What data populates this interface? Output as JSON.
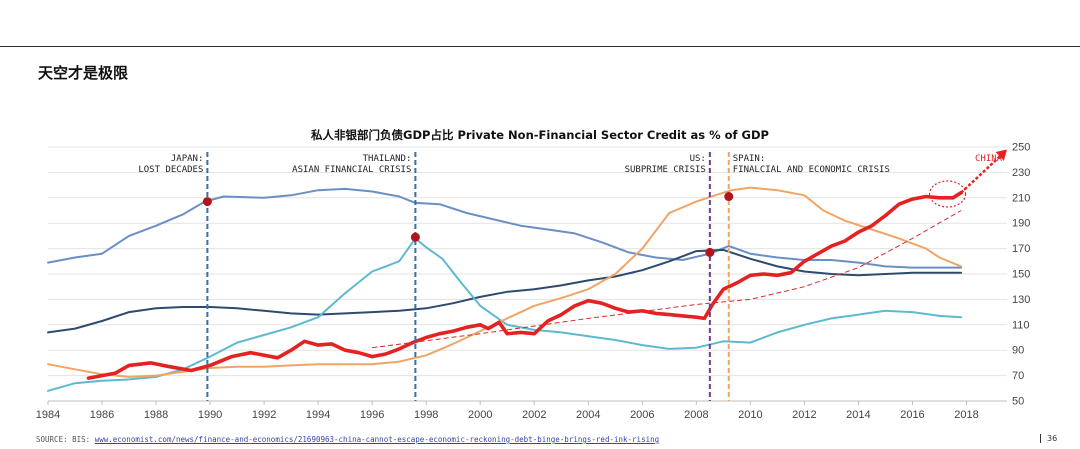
{
  "slide": {
    "heading": "天空才是极限",
    "source_prefix": "SOURCE: BIS: ",
    "source_url": "www.economist.com/news/finance-and-economics/21690963-china-cannot-escape-economic-reckoning-debt-binge-brings-red-ink-rising",
    "page_number": "36"
  },
  "chart_data": {
    "type": "line",
    "title": "私人非银部门负债GDP占比 Private Non-Financial Sector Credit as % of GDP",
    "xlim": [
      1984,
      2019.5
    ],
    "ylim": [
      50,
      250
    ],
    "x_ticks": [
      "1984",
      "1986",
      "1988",
      "1990",
      "1992",
      "1994",
      "1996",
      "1998",
      "2000",
      "2002",
      "2004",
      "2006",
      "2008",
      "2010",
      "2012",
      "2014",
      "2016",
      "2018"
    ],
    "y_ticks": [
      "50",
      "70",
      "90",
      "110",
      "130",
      "150",
      "170",
      "190",
      "210",
      "230",
      "250"
    ],
    "y_axis_side": "right",
    "grid": "horizontal",
    "legend": "none",
    "series": [
      {
        "color": "#6a8fc4",
        "points": [
          [
            1984,
            159
          ],
          [
            1985,
            163
          ],
          [
            1986,
            166
          ],
          [
            1987,
            180
          ],
          [
            1988,
            188
          ],
          [
            1989,
            197
          ],
          [
            1989.8,
            207
          ],
          [
            1990.5,
            211
          ],
          [
            1992,
            210
          ],
          [
            1993,
            212
          ],
          [
            1994,
            216
          ],
          [
            1995,
            217
          ],
          [
            1996,
            215
          ],
          [
            1997,
            211
          ],
          [
            1997.6,
            206
          ],
          [
            1998.5,
            205
          ],
          [
            1999.5,
            198
          ],
          [
            2000.5,
            193
          ],
          [
            2001.5,
            188
          ],
          [
            2002.5,
            185
          ],
          [
            2003.5,
            182
          ],
          [
            2004.5,
            175
          ],
          [
            2005.5,
            167
          ],
          [
            2006.5,
            163
          ],
          [
            2007.5,
            161
          ],
          [
            2008.5,
            166
          ],
          [
            2009.2,
            172
          ],
          [
            2010,
            166
          ],
          [
            2011,
            163
          ],
          [
            2012,
            161
          ],
          [
            2013,
            161
          ],
          [
            2014,
            159
          ],
          [
            2015,
            156
          ],
          [
            2016,
            155
          ],
          [
            2017,
            155
          ],
          [
            2017.8,
            155
          ]
        ]
      },
      {
        "color": "#2e4a6e",
        "points": [
          [
            1984,
            104
          ],
          [
            1985,
            107
          ],
          [
            1986,
            113
          ],
          [
            1987,
            120
          ],
          [
            1988,
            123
          ],
          [
            1989,
            124
          ],
          [
            1990,
            124
          ],
          [
            1991,
            123
          ],
          [
            1992,
            121
          ],
          [
            1993,
            119
          ],
          [
            1994,
            118
          ],
          [
            1995,
            119
          ],
          [
            1996,
            120
          ],
          [
            1997,
            121
          ],
          [
            1998,
            123
          ],
          [
            1999,
            127
          ],
          [
            2000,
            132
          ],
          [
            2001,
            136
          ],
          [
            2002,
            138
          ],
          [
            2003,
            141
          ],
          [
            2004,
            145
          ],
          [
            2005,
            148
          ],
          [
            2006,
            153
          ],
          [
            2007,
            160
          ],
          [
            2008,
            168
          ],
          [
            2009,
            169
          ],
          [
            2010,
            162
          ],
          [
            2011,
            156
          ],
          [
            2012,
            152
          ],
          [
            2013,
            150
          ],
          [
            2014,
            149
          ],
          [
            2015,
            150
          ],
          [
            2016,
            151
          ],
          [
            2017,
            151
          ],
          [
            2017.8,
            151
          ]
        ]
      },
      {
        "color": "#5fb9ce",
        "points": [
          [
            1984,
            58
          ],
          [
            1985,
            64
          ],
          [
            1986,
            66
          ],
          [
            1987,
            67
          ],
          [
            1988,
            69
          ],
          [
            1989,
            75
          ],
          [
            1990,
            85
          ],
          [
            1991,
            96
          ],
          [
            1992,
            102
          ],
          [
            1993,
            108
          ],
          [
            1994,
            116
          ],
          [
            1995,
            135
          ],
          [
            1996,
            152
          ],
          [
            1997,
            160
          ],
          [
            1997.6,
            178
          ],
          [
            1998,
            171
          ],
          [
            1998.6,
            162
          ],
          [
            1999.3,
            143
          ],
          [
            2000,
            125
          ],
          [
            2001,
            110
          ],
          [
            2002,
            106
          ],
          [
            2003,
            104
          ],
          [
            2004,
            101
          ],
          [
            2005,
            98
          ],
          [
            2006,
            94
          ],
          [
            2007,
            91
          ],
          [
            2008,
            92
          ],
          [
            2009,
            97
          ],
          [
            2010,
            96
          ],
          [
            2011,
            104
          ],
          [
            2012,
            110
          ],
          [
            2013,
            115
          ],
          [
            2014,
            118
          ],
          [
            2015,
            121
          ],
          [
            2016,
            120
          ],
          [
            2017,
            117
          ],
          [
            2017.8,
            116
          ]
        ]
      },
      {
        "color": "#f0a466",
        "points": [
          [
            1984,
            79
          ],
          [
            1985,
            75
          ],
          [
            1986,
            71
          ],
          [
            1987,
            69
          ],
          [
            1988,
            70
          ],
          [
            1989,
            73
          ],
          [
            1990,
            76
          ],
          [
            1991,
            77
          ],
          [
            1992,
            77
          ],
          [
            1993,
            78
          ],
          [
            1994,
            79
          ],
          [
            1995,
            79
          ],
          [
            1996,
            79
          ],
          [
            1997,
            81
          ],
          [
            1998,
            86
          ],
          [
            1999,
            95
          ],
          [
            2000,
            105
          ],
          [
            2001,
            115
          ],
          [
            2002,
            125
          ],
          [
            2003,
            131
          ],
          [
            2004,
            138
          ],
          [
            2005,
            150
          ],
          [
            2006,
            170
          ],
          [
            2007,
            198
          ],
          [
            2008,
            207
          ],
          [
            2008.7,
            212
          ],
          [
            2009.3,
            216
          ],
          [
            2010,
            218
          ],
          [
            2011,
            216
          ],
          [
            2012,
            212
          ],
          [
            2012.7,
            200
          ],
          [
            2013.5,
            192
          ],
          [
            2014.5,
            185
          ],
          [
            2015.5,
            178
          ],
          [
            2016.5,
            170
          ],
          [
            2017,
            163
          ],
          [
            2017.8,
            156
          ]
        ]
      },
      {
        "color": "#e52222",
        "points": [
          [
            1985.5,
            68
          ],
          [
            1986.5,
            72
          ],
          [
            1987,
            78
          ],
          [
            1987.8,
            80
          ],
          [
            1988.5,
            77
          ],
          [
            1989.3,
            74
          ],
          [
            1990,
            78
          ],
          [
            1990.8,
            85
          ],
          [
            1991.5,
            88
          ],
          [
            1992.5,
            84
          ],
          [
            1993,
            90
          ],
          [
            1993.5,
            97
          ],
          [
            1994,
            94
          ],
          [
            1994.5,
            95
          ],
          [
            1995,
            90
          ],
          [
            1995.5,
            88
          ],
          [
            1996,
            85
          ],
          [
            1996.5,
            87
          ],
          [
            1997,
            91
          ],
          [
            1997.5,
            96
          ],
          [
            1998,
            100
          ],
          [
            1998.5,
            103
          ],
          [
            1999,
            105
          ],
          [
            1999.5,
            108
          ],
          [
            2000,
            110
          ],
          [
            2000.3,
            107
          ],
          [
            2000.7,
            112
          ],
          [
            2001,
            103
          ],
          [
            2001.5,
            104
          ],
          [
            2002,
            103
          ],
          [
            2002.5,
            113
          ],
          [
            2003,
            118
          ],
          [
            2003.5,
            125
          ],
          [
            2004,
            129
          ],
          [
            2004.5,
            127
          ],
          [
            2005,
            123
          ],
          [
            2005.5,
            120
          ],
          [
            2006,
            121
          ],
          [
            2006.5,
            119
          ],
          [
            2007,
            118
          ],
          [
            2007.5,
            117
          ],
          [
            2008,
            116
          ],
          [
            2008.3,
            115
          ],
          [
            2008.6,
            126
          ],
          [
            2009,
            138
          ],
          [
            2009.5,
            143
          ],
          [
            2010,
            149
          ],
          [
            2010.5,
            150
          ],
          [
            2011,
            149
          ],
          [
            2011.5,
            151
          ],
          [
            2012,
            160
          ],
          [
            2012.5,
            166
          ],
          [
            2013,
            172
          ],
          [
            2013.5,
            176
          ],
          [
            2014,
            183
          ],
          [
            2014.5,
            188
          ],
          [
            2015,
            196
          ],
          [
            2015.5,
            205
          ],
          [
            2016,
            209
          ],
          [
            2016.5,
            211
          ],
          [
            2017,
            210
          ],
          [
            2017.5,
            210
          ],
          [
            2017.8,
            214
          ]
        ]
      }
    ],
    "trend_line": {
      "color": "#d42a2a",
      "points": [
        [
          1996,
          92
        ],
        [
          2000,
          103
        ],
        [
          2004,
          115
        ],
        [
          2008,
          126
        ],
        [
          2010,
          130
        ],
        [
          2012,
          140
        ],
        [
          2014,
          155
        ],
        [
          2016,
          178
        ],
        [
          2017.8,
          200
        ]
      ]
    },
    "projection_arrow": {
      "color": "#e52222",
      "from": [
        2017.8,
        214
      ],
      "to": [
        2019.5,
        248
      ]
    },
    "crisis_markers": [
      {
        "x": 1989.9,
        "color": "#3a6ea5",
        "label_lines": [
          "JAPAN:",
          "LOST DECADES"
        ],
        "align": "right",
        "point_y": 207
      },
      {
        "x": 1997.6,
        "color": "#3a6ea5",
        "label_lines": [
          "THAILAND:",
          "ASIAN FINANCIAL CRISIS"
        ],
        "align": "right",
        "point_y": 179
      },
      {
        "x": 2008.5,
        "color": "#6a3c8c",
        "label_lines": [
          "US:",
          "SUBPRIME CRISIS"
        ],
        "align": "right",
        "point_y": 167
      },
      {
        "x": 2009.2,
        "color": "#f0a466",
        "label_lines": [
          "SPAIN:",
          "FINALCIAL AND ECONOMIC CRISIS"
        ],
        "align": "left",
        "point_y": 211
      }
    ],
    "china_label": "CHINA",
    "china_circle_center": [
      2017.3,
      213
    ]
  }
}
